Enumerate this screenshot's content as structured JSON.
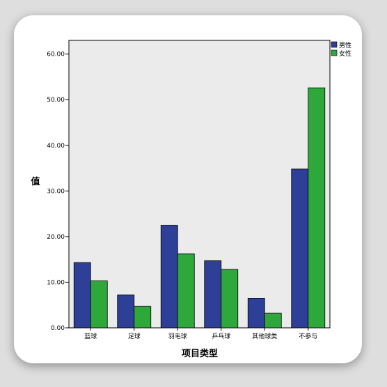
{
  "chart_data": {
    "type": "bar",
    "xlabel": "项目类型",
    "ylabel": "值",
    "categories": [
      "篮球",
      "足球",
      "羽毛球",
      "乒乓球",
      "其他球类",
      "不参与"
    ],
    "series": [
      {
        "name": "男性",
        "color": "#2e3f97",
        "values": [
          14.3,
          7.2,
          22.5,
          14.7,
          6.5,
          34.8
        ]
      },
      {
        "name": "女性",
        "color": "#2ea83a",
        "values": [
          10.3,
          4.7,
          16.2,
          12.8,
          3.2,
          52.6
        ]
      }
    ],
    "ylim": [
      0,
      63
    ],
    "yticks": [
      "0.00",
      "10.00",
      "20.00",
      "30.00",
      "40.00",
      "50.00",
      "60.00"
    ],
    "ytick_values": [
      0,
      10,
      20,
      30,
      40,
      50,
      60
    ],
    "grid": false,
    "legend": "top-right",
    "plot_background": "#ebebeb"
  }
}
